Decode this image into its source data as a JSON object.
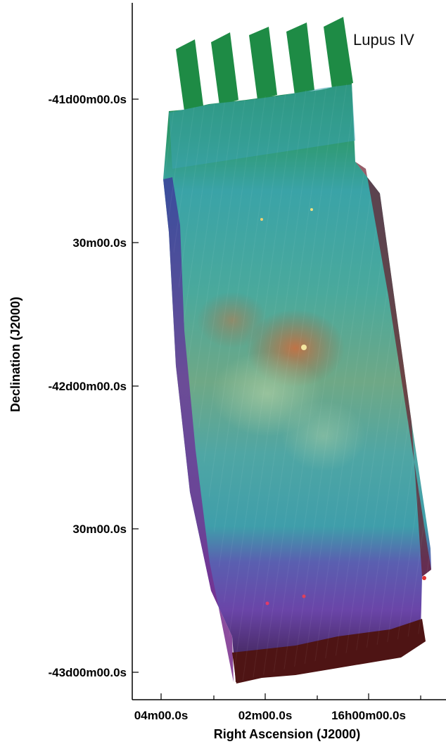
{
  "figure": {
    "object_label": "Lupus IV",
    "x_axis_title": "Right Ascension (J2000)",
    "y_axis_title": "Declination (J2000)",
    "x_tick_labels": [
      "04m00.0s",
      "02m00.0s",
      "16h00m00.0s"
    ],
    "y_tick_labels": [
      "-41d00m00.0s",
      "30m00.0s",
      "-42d00m00.0s",
      "30m00.0s",
      "-43d00m00.0s"
    ]
  },
  "colors": {
    "green_band": "#1f8a45",
    "cyan_band": "#3aa6a8",
    "purple_band": "#7a3fa8",
    "red_band": "#7a1515",
    "hotspot": "#d06a3a"
  }
}
